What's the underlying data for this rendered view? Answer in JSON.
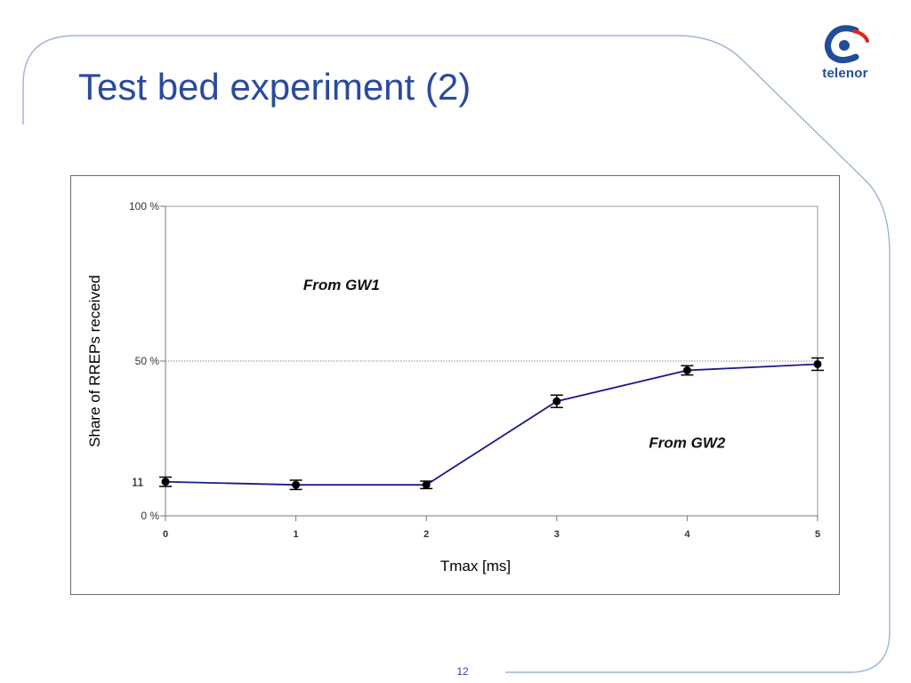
{
  "slide": {
    "title": "Test bed experiment (2)",
    "page_number": "12",
    "logo_text": "telenor",
    "colors": {
      "title": "#2a4a9c",
      "frame": "#9db3d6",
      "logo_blue": "#1f4f99",
      "logo_red": "#e2231a"
    }
  },
  "chart_data": {
    "type": "line",
    "title": "",
    "xlabel": "Tmax [ms]",
    "ylabel": "Share of RREPs received",
    "x": [
      0,
      1,
      2,
      3,
      4,
      5
    ],
    "x_ticks": [
      "0",
      "1",
      "2",
      "3",
      "4",
      "5"
    ],
    "y_ticks": [
      "0 %",
      "50 %",
      "100 %"
    ],
    "y_tick_values": [
      0,
      50,
      100
    ],
    "xlim": [
      0,
      5
    ],
    "ylim": [
      0,
      100
    ],
    "series": [
      {
        "values": [
          11,
          10,
          10,
          37,
          47,
          49
        ],
        "errors": [
          1.5,
          1.5,
          1.2,
          2,
          1.5,
          2
        ],
        "color": "#1a1a8c"
      }
    ],
    "reference_line": {
      "y": 50,
      "style": "dotted"
    },
    "annotations": [
      {
        "text": "From GW1",
        "x": 1.35,
        "y": 73
      },
      {
        "text": "From GW2",
        "x": 4.0,
        "y": 22
      }
    ],
    "value_label": {
      "text": "11",
      "y": 11
    },
    "grid": false,
    "legend": "none"
  }
}
